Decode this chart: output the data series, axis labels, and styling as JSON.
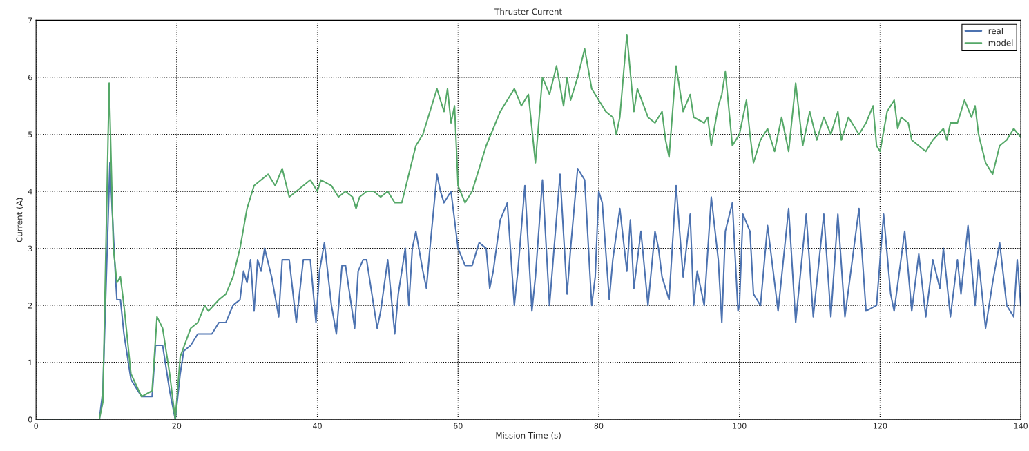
{
  "chart_data": {
    "type": "line",
    "title": "Thruster Current",
    "xlabel": "Mission Time (s)",
    "ylabel": "Current (A)",
    "xlim": [
      0,
      140
    ],
    "xticks": [
      0,
      20,
      40,
      60,
      80,
      100,
      120,
      140
    ],
    "ylim": [
      0,
      7
    ],
    "yticks": [
      0,
      1,
      2,
      3,
      4,
      5,
      6,
      7
    ],
    "grid": true,
    "line_style": "solid",
    "legend": "top right",
    "series": [
      {
        "name": "real",
        "color": "#4c72b0",
        "x": [
          0,
          9,
          9.5,
          10.5,
          11.3,
          11.5,
          12,
          12.5,
          13.5,
          15,
          16,
          16.5,
          17,
          18,
          19,
          19.8,
          20.5,
          21,
          22,
          23,
          25,
          26,
          27,
          28,
          29,
          29.5,
          30,
          30.5,
          31,
          31.5,
          32,
          32.5,
          33.5,
          34.5,
          35,
          36,
          37,
          38,
          39,
          39.8,
          40.3,
          41,
          42,
          42.7,
          43.5,
          44,
          45.3,
          45.8,
          46.5,
          47,
          48,
          48.5,
          49,
          50,
          51,
          51.5,
          52.5,
          53,
          53.5,
          54,
          55,
          55.5,
          56,
          57,
          57.5,
          58,
          59,
          60,
          61,
          62,
          63,
          64,
          64.5,
          65,
          66,
          67,
          68,
          68.5,
          69.5,
          70.5,
          71,
          72,
          73,
          74.5,
          75.5,
          76,
          77,
          78,
          79,
          79.5,
          80,
          80.5,
          81.5,
          82,
          83,
          84,
          84.5,
          85,
          86,
          87,
          88,
          88.5,
          89,
          90,
          91,
          92,
          93,
          93.5,
          94,
          95,
          96,
          97,
          97.5,
          98,
          99,
          99.8,
          100,
          100.5,
          101.5,
          102,
          103,
          104,
          105,
          105.5,
          107,
          108,
          109.5,
          110.5,
          112,
          113,
          114,
          115,
          117,
          118,
          119.5,
          120.5,
          121.5,
          122,
          123.5,
          124.5,
          125.5,
          126.5,
          127.5,
          128.5,
          129,
          130,
          131,
          131.5,
          132.5,
          133.5,
          134,
          135,
          136,
          137,
          138,
          139,
          139.5,
          140
        ],
        "values": [
          0,
          0,
          0.5,
          4.5,
          2.5,
          2.1,
          2.1,
          1.5,
          0.7,
          0.4,
          0.4,
          0.4,
          1.3,
          1.3,
          0.5,
          0,
          0.8,
          1.2,
          1.3,
          1.5,
          1.5,
          1.7,
          1.7,
          2.0,
          2.1,
          2.6,
          2.4,
          2.8,
          1.9,
          2.8,
          2.6,
          3.0,
          2.5,
          1.8,
          2.8,
          2.8,
          1.7,
          2.8,
          2.8,
          1.7,
          2.6,
          3.1,
          2.0,
          1.5,
          2.7,
          2.7,
          1.6,
          2.6,
          2.8,
          2.8,
          2.0,
          1.6,
          1.9,
          2.8,
          1.5,
          2.2,
          3.0,
          2.0,
          3.0,
          3.3,
          2.6,
          2.3,
          3.0,
          4.3,
          4.0,
          3.8,
          4.0,
          3.0,
          2.7,
          2.7,
          3.1,
          3.0,
          2.3,
          2.6,
          3.5,
          3.8,
          2.0,
          2.6,
          4.1,
          1.9,
          2.5,
          4.2,
          2.0,
          4.3,
          2.2,
          3.0,
          4.4,
          4.2,
          2.0,
          2.5,
          4.0,
          3.8,
          2.1,
          2.8,
          3.7,
          2.6,
          3.5,
          2.3,
          3.3,
          2.0,
          3.3,
          3.0,
          2.5,
          2.1,
          4.1,
          2.5,
          3.6,
          2.0,
          2.6,
          2.0,
          3.9,
          2.8,
          1.7,
          3.3,
          3.8,
          1.9,
          2.0,
          3.6,
          3.3,
          2.2,
          2.0,
          3.4,
          2.4,
          1.9,
          3.7,
          1.7,
          3.6,
          1.8,
          3.6,
          1.8,
          3.6,
          1.8,
          3.7,
          1.9,
          2.0,
          3.6,
          2.2,
          1.9,
          3.3,
          1.9,
          2.9,
          1.8,
          2.8,
          2.3,
          3.0,
          1.8,
          2.8,
          2.2,
          3.4,
          2.0,
          2.8,
          1.6,
          2.4,
          3.1,
          2.0,
          1.8,
          2.8,
          2.0
        ]
      },
      {
        "name": "model",
        "color": "#55a868",
        "x": [
          0,
          9,
          9.5,
          10.4,
          11,
          11.5,
          12,
          12.5,
          13.5,
          15,
          16.5,
          17.2,
          18,
          19,
          19.8,
          20.5,
          22,
          23,
          24,
          24.5,
          26,
          27,
          28,
          29,
          30,
          31,
          32,
          33,
          34,
          35,
          36,
          37,
          38,
          39,
          40,
          40.5,
          42,
          43,
          44,
          45,
          45.5,
          46,
          47,
          48,
          49,
          50,
          51,
          52,
          53,
          54,
          55,
          56,
          57,
          58,
          58.5,
          59,
          59.5,
          60,
          61,
          62,
          63,
          64,
          65,
          66,
          67,
          68,
          69,
          70,
          71,
          72,
          73,
          74,
          75,
          75.5,
          76,
          77,
          78,
          79,
          80,
          81,
          82,
          82.5,
          83,
          84,
          85,
          85.5,
          87,
          88,
          89,
          89.5,
          90,
          91,
          92,
          93,
          93.5,
          95,
          95.5,
          96,
          97,
          97.5,
          98,
          99,
          100,
          101,
          101.5,
          102,
          103,
          104,
          105,
          106,
          107,
          108,
          109,
          110,
          111,
          112,
          113,
          114,
          114.5,
          115.5,
          117,
          118,
          119,
          119.5,
          120,
          121,
          122,
          122.5,
          123,
          124,
          124.5,
          125.5,
          126.5,
          127.5,
          129,
          129.5,
          130,
          131,
          132,
          133,
          133.5,
          134,
          135,
          136,
          137,
          138,
          139,
          140
        ],
        "values": [
          0,
          0,
          0.3,
          5.9,
          3.0,
          2.4,
          2.5,
          2.0,
          0.8,
          0.4,
          0.5,
          1.8,
          1.6,
          0.8,
          0,
          1.1,
          1.6,
          1.7,
          2.0,
          1.9,
          2.1,
          2.2,
          2.5,
          3.0,
          3.7,
          4.1,
          4.2,
          4.3,
          4.1,
          4.4,
          3.9,
          4.0,
          4.1,
          4.2,
          4.0,
          4.2,
          4.1,
          3.9,
          4.0,
          3.9,
          3.7,
          3.9,
          4.0,
          4.0,
          3.9,
          4.0,
          3.8,
          3.8,
          4.3,
          4.8,
          5.0,
          5.4,
          5.8,
          5.4,
          5.8,
          5.2,
          5.5,
          4.1,
          3.8,
          4.0,
          4.4,
          4.8,
          5.1,
          5.4,
          5.6,
          5.8,
          5.5,
          5.7,
          4.5,
          6.0,
          5.7,
          6.2,
          5.5,
          6.0,
          5.6,
          6.0,
          6.5,
          5.8,
          5.6,
          5.4,
          5.3,
          5.0,
          5.3,
          6.75,
          5.4,
          5.8,
          5.3,
          5.2,
          5.4,
          4.9,
          4.6,
          6.2,
          5.4,
          5.7,
          5.3,
          5.2,
          5.3,
          4.8,
          5.5,
          5.7,
          6.1,
          4.8,
          5.0,
          5.6,
          5.0,
          4.5,
          4.9,
          5.1,
          4.7,
          5.3,
          4.7,
          5.9,
          4.8,
          5.4,
          4.9,
          5.3,
          5.0,
          5.4,
          4.9,
          5.3,
          5.0,
          5.2,
          5.5,
          4.8,
          4.7,
          5.4,
          5.6,
          5.1,
          5.3,
          5.2,
          4.9,
          4.8,
          4.7,
          4.9,
          5.1,
          4.9,
          5.2,
          5.2,
          5.6,
          5.3,
          5.5,
          5.0,
          4.5,
          4.3,
          4.8,
          4.9,
          5.1,
          4.95
        ]
      }
    ]
  }
}
